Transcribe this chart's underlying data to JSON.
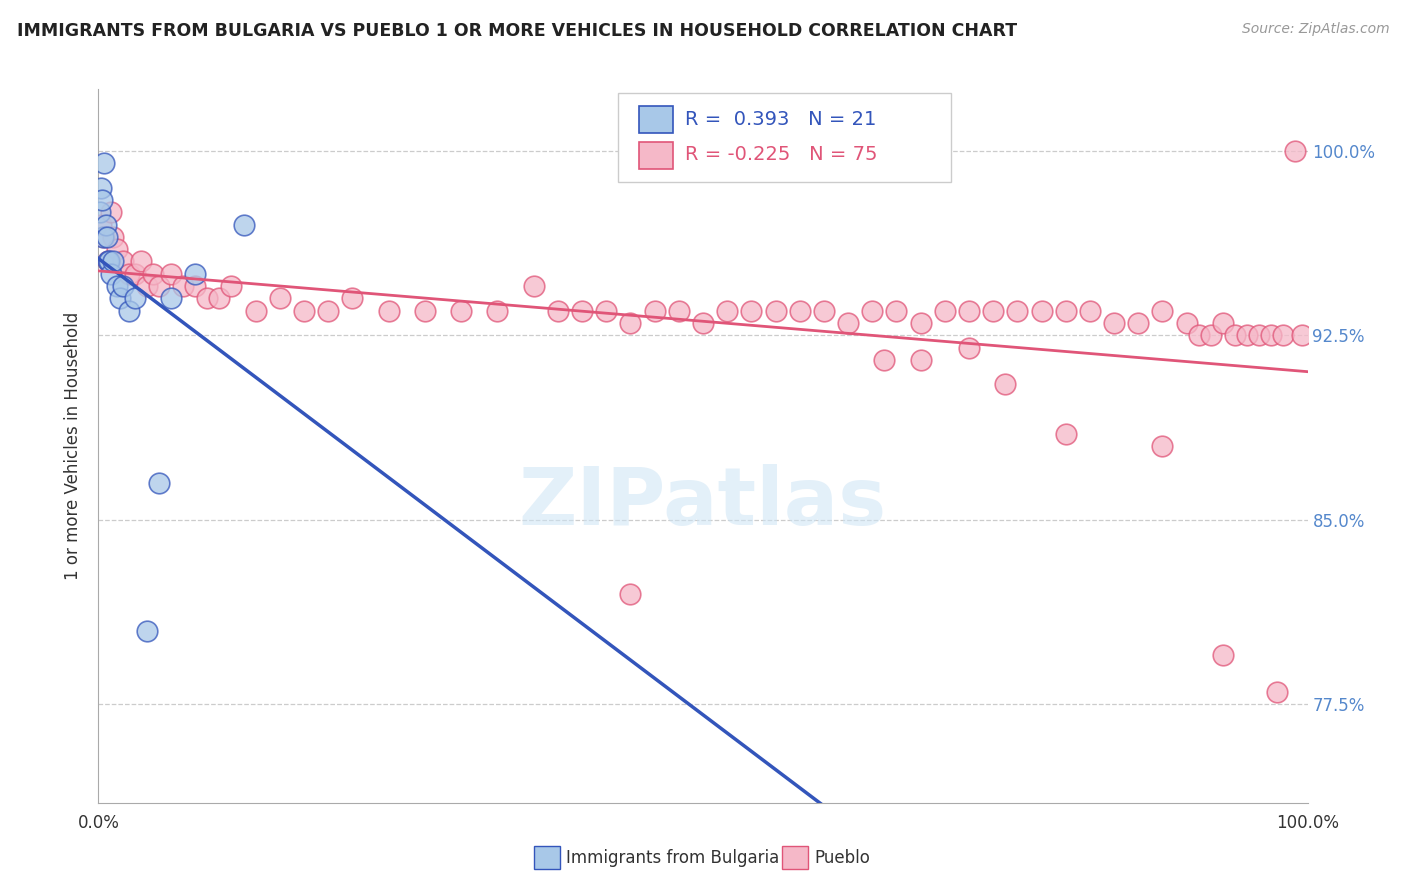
{
  "title": "IMMIGRANTS FROM BULGARIA VS PUEBLO 1 OR MORE VEHICLES IN HOUSEHOLD CORRELATION CHART",
  "source": "Source: ZipAtlas.com",
  "ylabel": "1 or more Vehicles in Household",
  "R_blue": 0.393,
  "N_blue": 21,
  "R_pink": -0.225,
  "N_pink": 75,
  "blue_color": "#A8C8E8",
  "pink_color": "#F5B8C8",
  "blue_line_color": "#3355BB",
  "pink_line_color": "#E05578",
  "yticks_major": [
    75.0,
    77.5,
    80.0,
    82.5,
    85.0,
    87.5,
    90.0,
    92.5,
    95.0,
    97.5,
    100.0
  ],
  "ytick_labels": [
    "",
    "77.5%",
    "",
    "",
    "85.0%",
    "",
    "",
    "92.5%",
    "",
    "",
    "100.0%"
  ],
  "xlim": [
    0,
    100
  ],
  "ylim": [
    73.5,
    102.5
  ],
  "legend_blue_label": "Immigrants from Bulgaria",
  "legend_pink_label": "Pueblo",
  "blue_x": [
    0.1,
    0.2,
    0.3,
    0.4,
    0.5,
    0.6,
    0.7,
    0.8,
    0.9,
    1.0,
    1.2,
    1.5,
    1.8,
    2.0,
    2.5,
    3.0,
    4.0,
    5.0,
    6.0,
    8.0,
    12.0
  ],
  "blue_y": [
    97.5,
    98.5,
    98.0,
    96.5,
    99.5,
    97.0,
    96.5,
    95.5,
    95.5,
    95.0,
    95.5,
    94.5,
    94.0,
    94.5,
    93.5,
    94.0,
    80.5,
    86.5,
    94.0,
    95.0,
    97.0
  ],
  "pink_x": [
    0.2,
    0.5,
    0.8,
    1.0,
    1.2,
    1.5,
    2.0,
    2.5,
    3.0,
    3.5,
    4.0,
    4.5,
    5.0,
    6.0,
    7.0,
    8.0,
    9.0,
    10.0,
    11.0,
    13.0,
    15.0,
    17.0,
    19.0,
    21.0,
    24.0,
    27.0,
    30.0,
    33.0,
    36.0,
    38.0,
    40.0,
    42.0,
    44.0,
    46.0,
    48.0,
    50.0,
    52.0,
    54.0,
    56.0,
    58.0,
    60.0,
    62.0,
    64.0,
    66.0,
    68.0,
    70.0,
    72.0,
    74.0,
    76.0,
    78.0,
    80.0,
    82.0,
    84.0,
    86.0,
    88.0,
    90.0,
    91.0,
    92.0,
    93.0,
    94.0,
    95.0,
    96.0,
    97.0,
    98.0,
    99.0,
    99.5,
    65.0,
    68.0,
    72.0,
    75.0,
    80.0,
    88.0,
    93.0,
    97.5,
    44.0
  ],
  "pink_y": [
    97.0,
    96.5,
    95.5,
    97.5,
    96.5,
    96.0,
    95.5,
    95.0,
    95.0,
    95.5,
    94.5,
    95.0,
    94.5,
    95.0,
    94.5,
    94.5,
    94.0,
    94.0,
    94.5,
    93.5,
    94.0,
    93.5,
    93.5,
    94.0,
    93.5,
    93.5,
    93.5,
    93.5,
    94.5,
    93.5,
    93.5,
    93.5,
    93.0,
    93.5,
    93.5,
    93.0,
    93.5,
    93.5,
    93.5,
    93.5,
    93.5,
    93.0,
    93.5,
    93.5,
    93.0,
    93.5,
    93.5,
    93.5,
    93.5,
    93.5,
    93.5,
    93.5,
    93.0,
    93.0,
    93.5,
    93.0,
    92.5,
    92.5,
    93.0,
    92.5,
    92.5,
    92.5,
    92.5,
    92.5,
    100.0,
    92.5,
    91.5,
    91.5,
    92.0,
    90.5,
    88.5,
    88.0,
    79.5,
    78.0,
    82.0
  ]
}
